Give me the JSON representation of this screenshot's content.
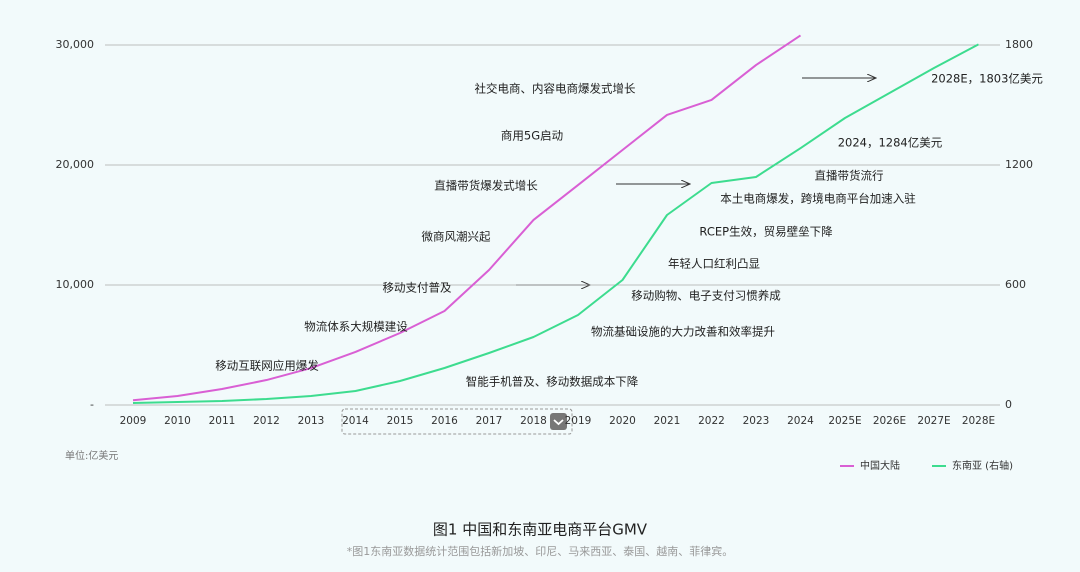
{
  "chart_data": {
    "type": "line",
    "title": "图1 中国和东南亚电商平台GMV",
    "subtitle": "*图1东南亚数据统计范围包括新加坡、印尼、马来西亚、泰国、越南、菲律宾。",
    "unit_label": "单位:亿美元",
    "categories": [
      "2009",
      "2010",
      "2011",
      "2012",
      "2013",
      "2014",
      "2015",
      "2016",
      "2017",
      "2018",
      "2019",
      "2020",
      "2021",
      "2022",
      "2023",
      "2024",
      "2025E",
      "2026E",
      "2027E",
      "2028E"
    ],
    "series": [
      {
        "name": "中国大陆",
        "color": "#d95fd4",
        "values": [
          400,
          750,
          1330,
          2080,
          3080,
          4420,
          6000,
          7830,
          11250,
          15420,
          18330,
          21250,
          24170,
          25420,
          28330,
          30800,
          null,
          null,
          null,
          null
        ]
      },
      {
        "name": "东南亚 (右轴)",
        "color": "#3ddc8f",
        "axis": "y2",
        "values": [
          10,
          15,
          20,
          30,
          45,
          70,
          120,
          185,
          260,
          340,
          450,
          625,
          950,
          1110,
          1140,
          1284,
          1435,
          1560,
          1685,
          1803
        ]
      }
    ],
    "ylim": [
      0,
      30000
    ],
    "yticks": [
      {
        "value": 0,
        "label": "-"
      },
      {
        "value": 10000,
        "label": "10,000"
      },
      {
        "value": 20000,
        "label": "20,000"
      },
      {
        "value": 30000,
        "label": "30,000"
      }
    ],
    "y2lim": [
      0,
      1800
    ],
    "y2ticks": [
      0,
      600,
      1200,
      1800
    ],
    "grid": true,
    "legend": "bottom-right",
    "annotations": [
      "社交电商、内容电商爆发式增长",
      "商用5G启动",
      "直播带货爆发式增长",
      "微商风潮兴起",
      "移动支付普及",
      "物流体系大规模建设",
      "移动互联网应用爆发",
      "智能手机普及、移动数据成本下降",
      "物流基础设施的大力改善和效率提升",
      "移动购物、电子支付习惯养成",
      "年轻人口红利凸显",
      "RCEP生效，贸易壁垒下降",
      "本土电商爆发，跨境电商平台加速入驻",
      "直播带货流行",
      "2024，1284亿美元",
      "2028E，1803亿美元"
    ]
  }
}
